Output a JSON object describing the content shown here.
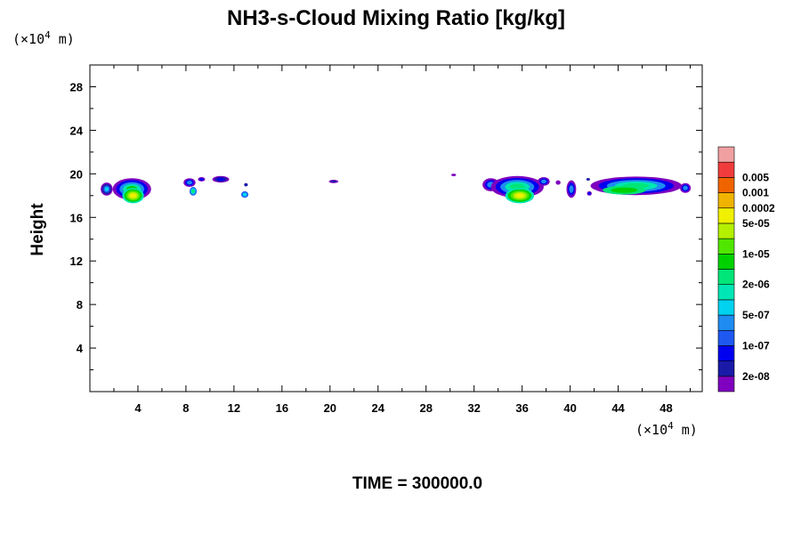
{
  "chart_data": {
    "type": "heatmap",
    "title": "NH3-s-Cloud Mixing Ratio [kg/kg]",
    "ylabel": "Height",
    "xlabel": "",
    "x_unit": {
      "prefix": "(×10",
      "exp": "4",
      "suffix": " m)"
    },
    "y_unit": {
      "prefix": "(×10",
      "exp": "4",
      "suffix": " m)"
    },
    "xlim": [
      0,
      51
    ],
    "ylim": [
      0,
      30
    ],
    "x_ticks": [
      4,
      8,
      12,
      16,
      20,
      24,
      28,
      32,
      36,
      40,
      44,
      48
    ],
    "y_ticks": [
      4,
      8,
      12,
      16,
      20,
      24,
      28
    ],
    "time_label": "TIME = 300000.0",
    "colorbar": {
      "colors": [
        "#7f00bf",
        "#1a1aa8",
        "#0000f0",
        "#1e58f0",
        "#1e8cf0",
        "#00d2f0",
        "#00e6b4",
        "#00e678",
        "#00d200",
        "#50e600",
        "#b4f000",
        "#f0f000",
        "#f0b400",
        "#f06400",
        "#f03c3c",
        "#f0a0a0"
      ],
      "labels": [
        {
          "index": 1,
          "text": "2e-08"
        },
        {
          "index": 3,
          "text": "1e-07"
        },
        {
          "index": 5,
          "text": "5e-07"
        },
        {
          "index": 7,
          "text": "2e-06"
        },
        {
          "index": 9,
          "text": "1e-05"
        },
        {
          "index": 11,
          "text": "5e-05"
        },
        {
          "index": 12,
          "text": "0.0002"
        },
        {
          "index": 13,
          "text": "0.001"
        },
        {
          "index": 14,
          "text": "0.005"
        }
      ]
    },
    "cloud_blobs": [
      {
        "x": 1.4,
        "y": 18.6,
        "rx": 0.5,
        "ry": 0.6,
        "levels": [
          0,
          1,
          3,
          5
        ]
      },
      {
        "x": 3.5,
        "y": 18.6,
        "rx": 1.6,
        "ry": 1.0,
        "levels": [
          0,
          2,
          4,
          6,
          8
        ]
      },
      {
        "x": 3.6,
        "y": 18.0,
        "rx": 0.9,
        "ry": 0.7,
        "levels": [
          6,
          8,
          9,
          10,
          11
        ]
      },
      {
        "x": 8.3,
        "y": 19.2,
        "rx": 0.5,
        "ry": 0.4,
        "levels": [
          0,
          2,
          4
        ]
      },
      {
        "x": 8.6,
        "y": 18.4,
        "rx": 0.3,
        "ry": 0.4,
        "levels": [
          3,
          5,
          7
        ]
      },
      {
        "x": 9.3,
        "y": 19.5,
        "rx": 0.3,
        "ry": 0.2,
        "levels": [
          0,
          2
        ]
      },
      {
        "x": 10.9,
        "y": 19.5,
        "rx": 0.7,
        "ry": 0.3,
        "levels": [
          0,
          1,
          2
        ]
      },
      {
        "x": 12.9,
        "y": 18.1,
        "rx": 0.3,
        "ry": 0.3,
        "levels": [
          3,
          5
        ]
      },
      {
        "x": 13.0,
        "y": 19.0,
        "rx": 0.15,
        "ry": 0.15,
        "levels": [
          1
        ]
      },
      {
        "x": 20.3,
        "y": 19.3,
        "rx": 0.4,
        "ry": 0.15,
        "levels": [
          0,
          1
        ]
      },
      {
        "x": 30.3,
        "y": 19.9,
        "rx": 0.2,
        "ry": 0.12,
        "levels": [
          0
        ]
      },
      {
        "x": 33.4,
        "y": 19.0,
        "rx": 0.7,
        "ry": 0.6,
        "levels": [
          0,
          2,
          4
        ]
      },
      {
        "x": 35.6,
        "y": 18.8,
        "rx": 2.2,
        "ry": 1.0,
        "levels": [
          0,
          2,
          4,
          6,
          7
        ]
      },
      {
        "x": 35.8,
        "y": 18.0,
        "rx": 1.2,
        "ry": 0.7,
        "levels": [
          6,
          8,
          9,
          10,
          11
        ]
      },
      {
        "x": 37.8,
        "y": 19.3,
        "rx": 0.5,
        "ry": 0.4,
        "levels": [
          0,
          2,
          4
        ]
      },
      {
        "x": 39.0,
        "y": 19.2,
        "rx": 0.2,
        "ry": 0.2,
        "levels": [
          0
        ]
      },
      {
        "x": 40.1,
        "y": 18.6,
        "rx": 0.4,
        "ry": 0.8,
        "levels": [
          0,
          2,
          4
        ]
      },
      {
        "x": 41.6,
        "y": 18.2,
        "rx": 0.2,
        "ry": 0.2,
        "levels": [
          0,
          2
        ]
      },
      {
        "x": 41.5,
        "y": 19.5,
        "rx": 0.15,
        "ry": 0.12,
        "levels": [
          1
        ]
      },
      {
        "x": 45.5,
        "y": 18.9,
        "rx": 3.8,
        "ry": 0.85,
        "levels": [
          0,
          2,
          4,
          6,
          7
        ]
      },
      {
        "x": 44.5,
        "y": 18.5,
        "rx": 1.8,
        "ry": 0.4,
        "levels": [
          7,
          8
        ]
      },
      {
        "x": 49.6,
        "y": 18.7,
        "rx": 0.45,
        "ry": 0.45,
        "levels": [
          0,
          2,
          4
        ]
      }
    ]
  }
}
